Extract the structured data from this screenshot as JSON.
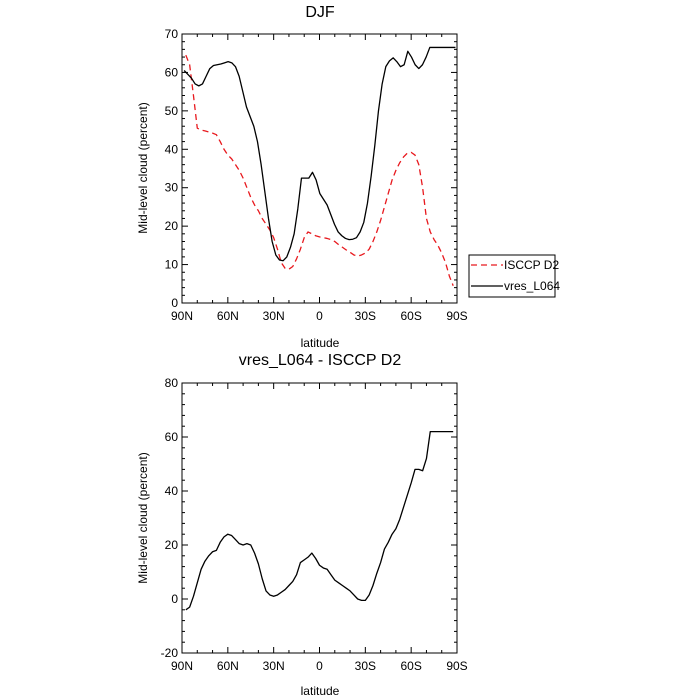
{
  "chart_data": [
    {
      "type": "line",
      "title": "DJF",
      "xlabel": "latitude",
      "ylabel": "Mid-level cloud (percent)",
      "xlim": [
        90,
        -90
      ],
      "ylim": [
        0,
        70
      ],
      "x_ticks": [
        90,
        60,
        30,
        0,
        -30,
        -60,
        -90
      ],
      "x_tick_labels": [
        "90N",
        "60N",
        "30N",
        "0",
        "30S",
        "60S",
        "90S"
      ],
      "y_ticks": [
        0,
        10,
        20,
        30,
        40,
        50,
        60,
        70
      ],
      "y_tick_labels": [
        "0",
        "10",
        "20",
        "30",
        "40",
        "50",
        "60",
        "70"
      ],
      "legend_position": "right",
      "series": [
        {
          "name": "ISCCP D2",
          "color": "#e8191e",
          "dash": "dashed",
          "x": [
            87.5,
            85,
            82.5,
            80,
            77.5,
            75,
            72.5,
            70,
            67.5,
            65,
            62.5,
            60,
            57.5,
            55,
            52.5,
            50,
            47.5,
            45,
            42.5,
            40,
            37.5,
            35,
            32.5,
            30,
            27.5,
            25,
            22.5,
            20,
            17.5,
            15,
            12.5,
            10,
            7.5,
            5,
            2.5,
            0,
            -2.5,
            -5,
            -7.5,
            -10,
            -12.5,
            -15,
            -17.5,
            -20,
            -22.5,
            -25,
            -27.5,
            -30,
            -32.5,
            -35,
            -37.5,
            -40,
            -42.5,
            -45,
            -47.5,
            -50,
            -52.5,
            -55,
            -57.5,
            -60,
            -62.5,
            -65,
            -67.5,
            -70,
            -72.5,
            -75,
            -77.5,
            -80,
            -82.5,
            -85,
            -87.5
          ],
          "y": [
            64.5,
            62,
            54,
            45.5,
            45,
            44.8,
            44.5,
            44.2,
            43.8,
            42,
            40,
            38.5,
            37.5,
            36,
            34.5,
            32.5,
            30,
            27.5,
            25.5,
            24,
            22,
            20.5,
            19,
            17,
            14,
            10.5,
            9,
            8.8,
            9.5,
            11.5,
            14,
            17,
            18.5,
            18,
            17.5,
            17.2,
            17,
            16.8,
            16.5,
            16,
            15.2,
            14.5,
            13.8,
            13.2,
            12.5,
            12.2,
            12.5,
            13,
            14,
            16,
            18.5,
            21.5,
            25,
            28.5,
            32,
            34.5,
            36.5,
            38,
            39,
            39.2,
            38.5,
            36,
            30,
            22,
            18.5,
            16.5,
            15,
            13,
            10.5,
            7,
            4.5
          ]
        },
        {
          "name": "vres_L064",
          "color": "#000000",
          "dash": "solid",
          "x": [
            88.6,
            86.2,
            83.8,
            81.4,
            79,
            76.6,
            74.2,
            71.8,
            69.4,
            67,
            64.6,
            62.2,
            59.8,
            57.4,
            55,
            52.6,
            50.2,
            47.8,
            45.4,
            43,
            40.6,
            38.2,
            35.8,
            33.4,
            31,
            28.6,
            26.2,
            23.8,
            21.4,
            19,
            16.6,
            14.2,
            11.8,
            9.4,
            7,
            4.6,
            2.2,
            -0.2,
            -2.6,
            -5,
            -7.4,
            -9.8,
            -12.2,
            -14.6,
            -17,
            -19.4,
            -21.8,
            -24.2,
            -26.6,
            -29,
            -31.4,
            -33.8,
            -36.2,
            -38.6,
            -41,
            -43.4,
            -45.8,
            -48.2,
            -50.6,
            -53,
            -55.4,
            -57.8,
            -60.2,
            -62.6,
            -65,
            -67.4,
            -69.8,
            -72.2,
            -74.6,
            -77,
            -79.4,
            -81.8,
            -84.2,
            -86.6,
            -89
          ],
          "y": [
            60.5,
            59.5,
            58.5,
            57,
            56.5,
            57,
            59,
            61,
            61.8,
            62,
            62.2,
            62.5,
            62.8,
            62.5,
            61.5,
            59,
            55,
            51,
            48.5,
            46,
            42,
            36,
            29,
            22,
            16,
            12.5,
            11.2,
            11,
            12,
            14.5,
            18,
            24.5,
            32.5,
            32.5,
            32.5,
            34,
            32,
            28.5,
            27,
            25.5,
            23,
            20.5,
            18.5,
            17.5,
            16.8,
            16.5,
            16.6,
            17,
            18.5,
            21,
            26,
            33,
            41,
            50,
            57,
            61.5,
            63,
            63.8,
            62.8,
            61.5,
            62,
            65.5,
            64,
            62,
            61,
            62,
            64,
            66.5,
            66.5,
            66.5,
            66.5,
            66.5,
            66.5,
            66.5,
            66.5
          ]
        }
      ]
    },
    {
      "type": "line",
      "title": "vres_L064 - ISCCP D2",
      "xlabel": "latitude",
      "ylabel": "Mid-level cloud (percent)",
      "xlim": [
        90,
        -90
      ],
      "ylim": [
        -20,
        80
      ],
      "x_ticks": [
        90,
        60,
        30,
        0,
        -30,
        -60,
        -90
      ],
      "x_tick_labels": [
        "90N",
        "60N",
        "30N",
        "0",
        "30S",
        "60S",
        "90S"
      ],
      "y_ticks": [
        -20,
        0,
        20,
        40,
        60,
        80
      ],
      "y_tick_labels": [
        "-20",
        "0",
        "20",
        "40",
        "60",
        "80"
      ],
      "series": [
        {
          "color": "#000000",
          "dash": "solid",
          "x": [
            87.5,
            85,
            82.5,
            80,
            77.5,
            75,
            72.5,
            70,
            67.5,
            65,
            62.5,
            60,
            57.5,
            55,
            52.5,
            50,
            47.5,
            45,
            42.5,
            40,
            37.5,
            35,
            32.5,
            30,
            27.5,
            25,
            22.5,
            20,
            17.5,
            15,
            12.5,
            10,
            7.5,
            5,
            2.5,
            0,
            -2.5,
            -5,
            -7.5,
            -10,
            -12.5,
            -15,
            -17.5,
            -20,
            -22.5,
            -25,
            -27.5,
            -30,
            -32.5,
            -35,
            -37.5,
            -40,
            -42.5,
            -45,
            -47.5,
            -50,
            -52.5,
            -55,
            -57.5,
            -60,
            -62.5,
            -65,
            -67.5,
            -70,
            -72.5,
            -75,
            -77.5,
            -80,
            -82.5,
            -85,
            -87.5
          ],
          "y": [
            -4,
            -3,
            1,
            6,
            11,
            14,
            16,
            17.5,
            18,
            21,
            23,
            24,
            23.5,
            22,
            20.5,
            20,
            20.5,
            20,
            17,
            13,
            7.5,
            3,
            1.5,
            1,
            1.5,
            2.5,
            3.5,
            5,
            6.5,
            9,
            13.5,
            14.5,
            15.5,
            17,
            15,
            12.5,
            11.5,
            11,
            9,
            7,
            6,
            5,
            4,
            3,
            1.5,
            0,
            -0.5,
            -0.5,
            1.5,
            5,
            9.5,
            13.5,
            18.5,
            21,
            24,
            26,
            29.5,
            34,
            38.5,
            43,
            48,
            48,
            47.5,
            52,
            62,
            62,
            62,
            62,
            62,
            62,
            62
          ]
        }
      ]
    }
  ]
}
